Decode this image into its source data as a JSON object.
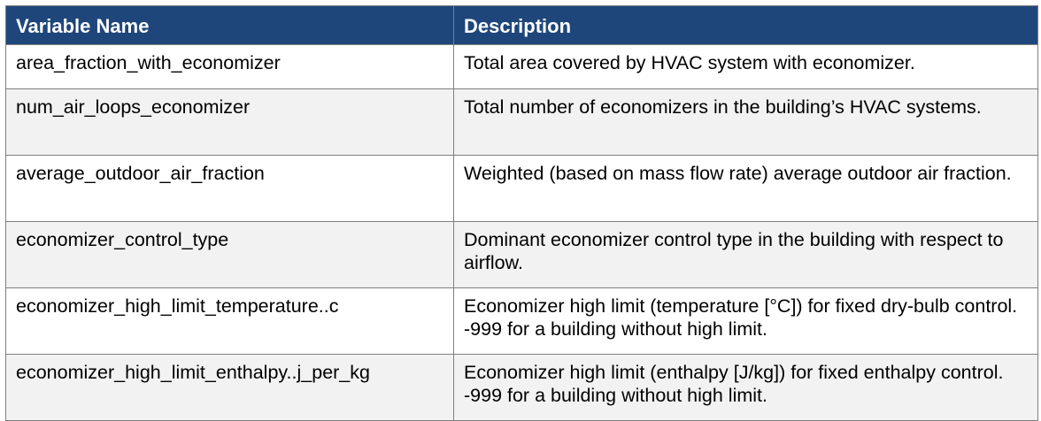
{
  "table": {
    "headers": [
      "Variable Name",
      "Description"
    ],
    "rows": [
      {
        "variable": "area_fraction_with_economizer",
        "description": "Total area covered by HVAC system with economizer."
      },
      {
        "variable": "num_air_loops_economizer",
        "description": "Total number of economizers in the building’s HVAC systems."
      },
      {
        "variable": "average_outdoor_air_fraction",
        "description": "Weighted (based on mass flow rate) average outdoor air fraction."
      },
      {
        "variable": "economizer_control_type",
        "description": "Dominant economizer control type in the building with respect to airflow."
      },
      {
        "variable": "economizer_high_limit_temperature..c",
        "description": "Economizer high limit (temperature [°C]) for fixed dry-bulb control. -999 for a building without high limit."
      },
      {
        "variable": "economizer_high_limit_enthalpy..j_per_kg",
        "description": "Economizer high limit (enthalpy [J/kg]) for fixed enthalpy control. -999 for a building without high limit."
      }
    ]
  },
  "colors": {
    "header_background": "#1f467b",
    "header_text": "#ffffff",
    "alt_row_background": "#f2f2f2",
    "border": "#7f7f7f"
  }
}
